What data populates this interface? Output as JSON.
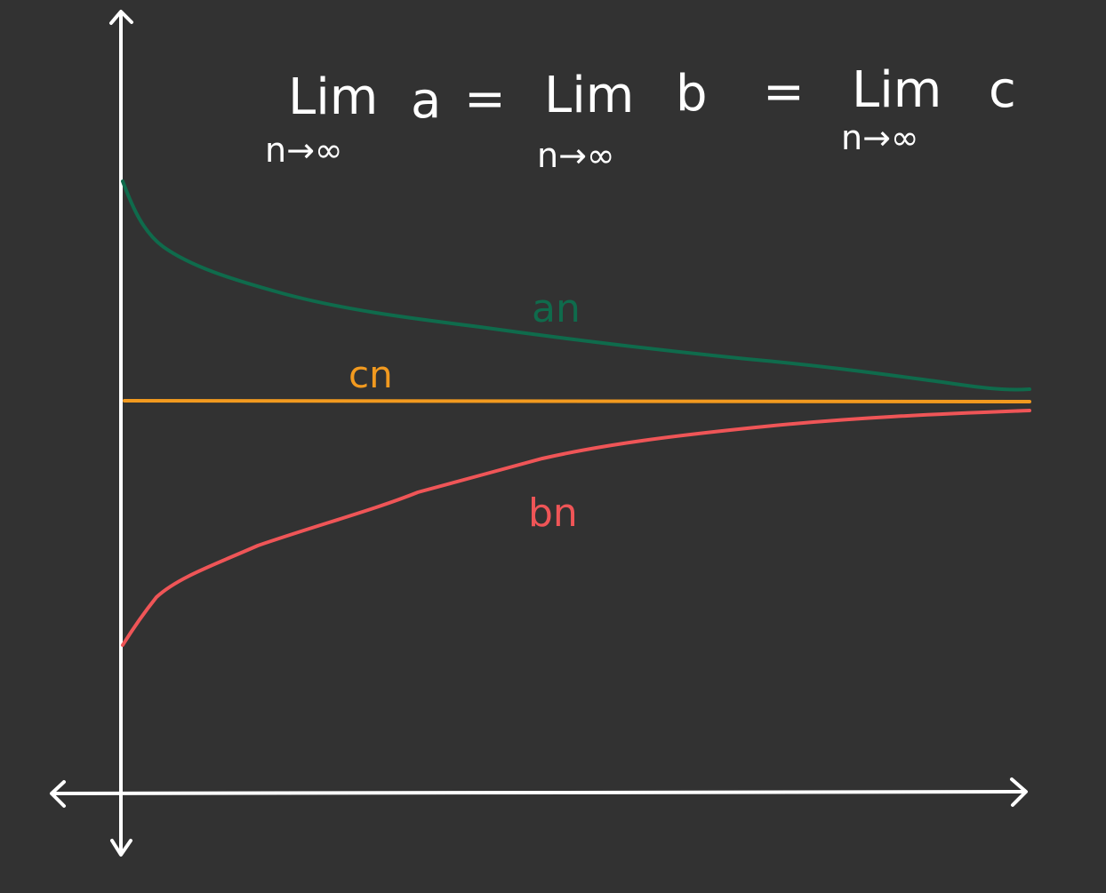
{
  "colors": {
    "background": "#323232",
    "axes": "#ffffff",
    "text": "#ffffff",
    "series_a": "#0f6b4c",
    "series_b": "#ef5557",
    "series_c": "#f29a1f"
  },
  "formula": {
    "lim1": "Lim",
    "var1": "a",
    "eq1": "=",
    "lim2": "Lim",
    "var2": "b",
    "eq2": "=",
    "lim3": "Lim",
    "var3": "c",
    "sub1": "n→∞",
    "sub2": "n→∞",
    "sub3": "n→∞"
  },
  "labels": {
    "a": "an",
    "b": "bn",
    "c": "cn"
  },
  "icons": {
    "axis_arrows": "arrowhead-icon"
  }
}
